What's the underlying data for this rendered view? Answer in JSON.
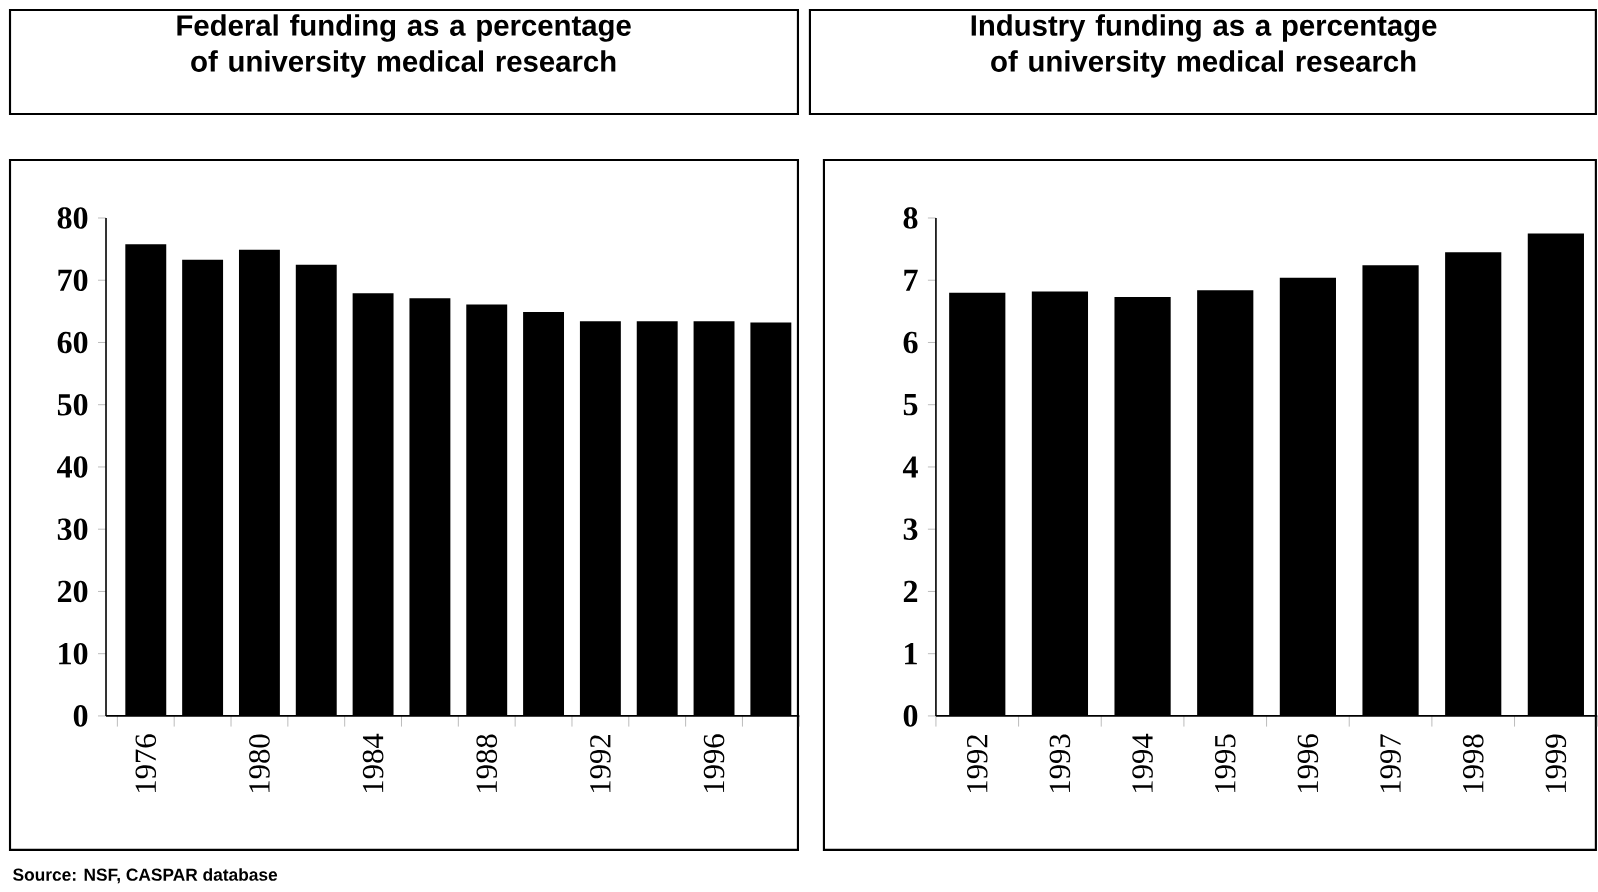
{
  "chart_data": [
    {
      "type": "bar",
      "title": "Federal funding as a percentage of university medical research",
      "categories": [
        "1976",
        null,
        "1980",
        null,
        "1984",
        null,
        "1988",
        null,
        "1992",
        null,
        "1996",
        null
      ],
      "values": [
        75.8,
        73.3,
        74.9,
        72.5,
        67.9,
        67.1,
        66.1,
        64.9,
        63.4,
        63.4,
        63.4,
        63.2
      ],
      "color": "#000000",
      "ylim": [
        0,
        80
      ],
      "yticks": [
        0,
        10,
        20,
        30,
        40,
        50,
        60,
        70,
        80
      ],
      "annotations": [
        "Source: NSF, CASPAR database"
      ]
    },
    {
      "type": "bar",
      "title": "Industry funding as a percentage of university medical research",
      "categories": [
        "1992",
        "1993",
        "1994",
        "1995",
        "1996",
        "1997",
        "1998",
        "1999"
      ],
      "values": [
        6.8,
        6.82,
        6.73,
        6.84,
        7.04,
        7.24,
        7.45,
        7.75
      ],
      "color": "#000000",
      "ylim": [
        0,
        8
      ],
      "yticks": [
        0,
        1,
        2,
        3,
        4,
        5,
        6,
        7,
        8
      ]
    }
  ]
}
